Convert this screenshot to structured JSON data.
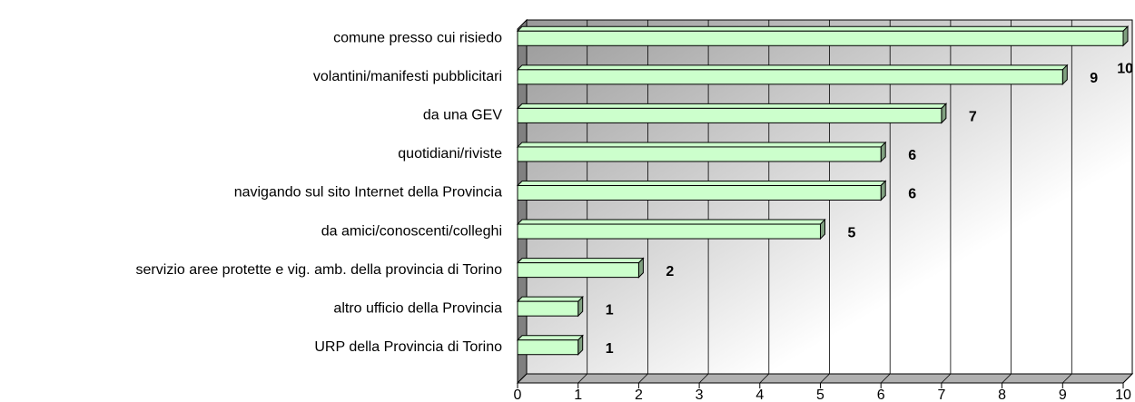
{
  "chart_data": {
    "type": "bar",
    "orientation": "horizontal",
    "categories": [
      "comune presso cui risiedo",
      "volantini/manifesti pubblicitari",
      "da una GEV",
      "quotidiani/riviste",
      "navigando sul sito Internet della Provincia",
      "da amici/conoscenti/colleghi",
      "servizio aree protette e vig. amb. della provincia di Torino",
      "altro ufficio della Provincia",
      "URP della Provincia di Torino"
    ],
    "values": [
      10,
      9,
      7,
      6,
      6,
      5,
      2,
      1,
      1
    ],
    "color": "#ccffcc",
    "xlim": [
      0,
      10
    ],
    "xticks": [
      0,
      1,
      2,
      3,
      4,
      5,
      6,
      7,
      8,
      9,
      10
    ],
    "grid": true
  }
}
